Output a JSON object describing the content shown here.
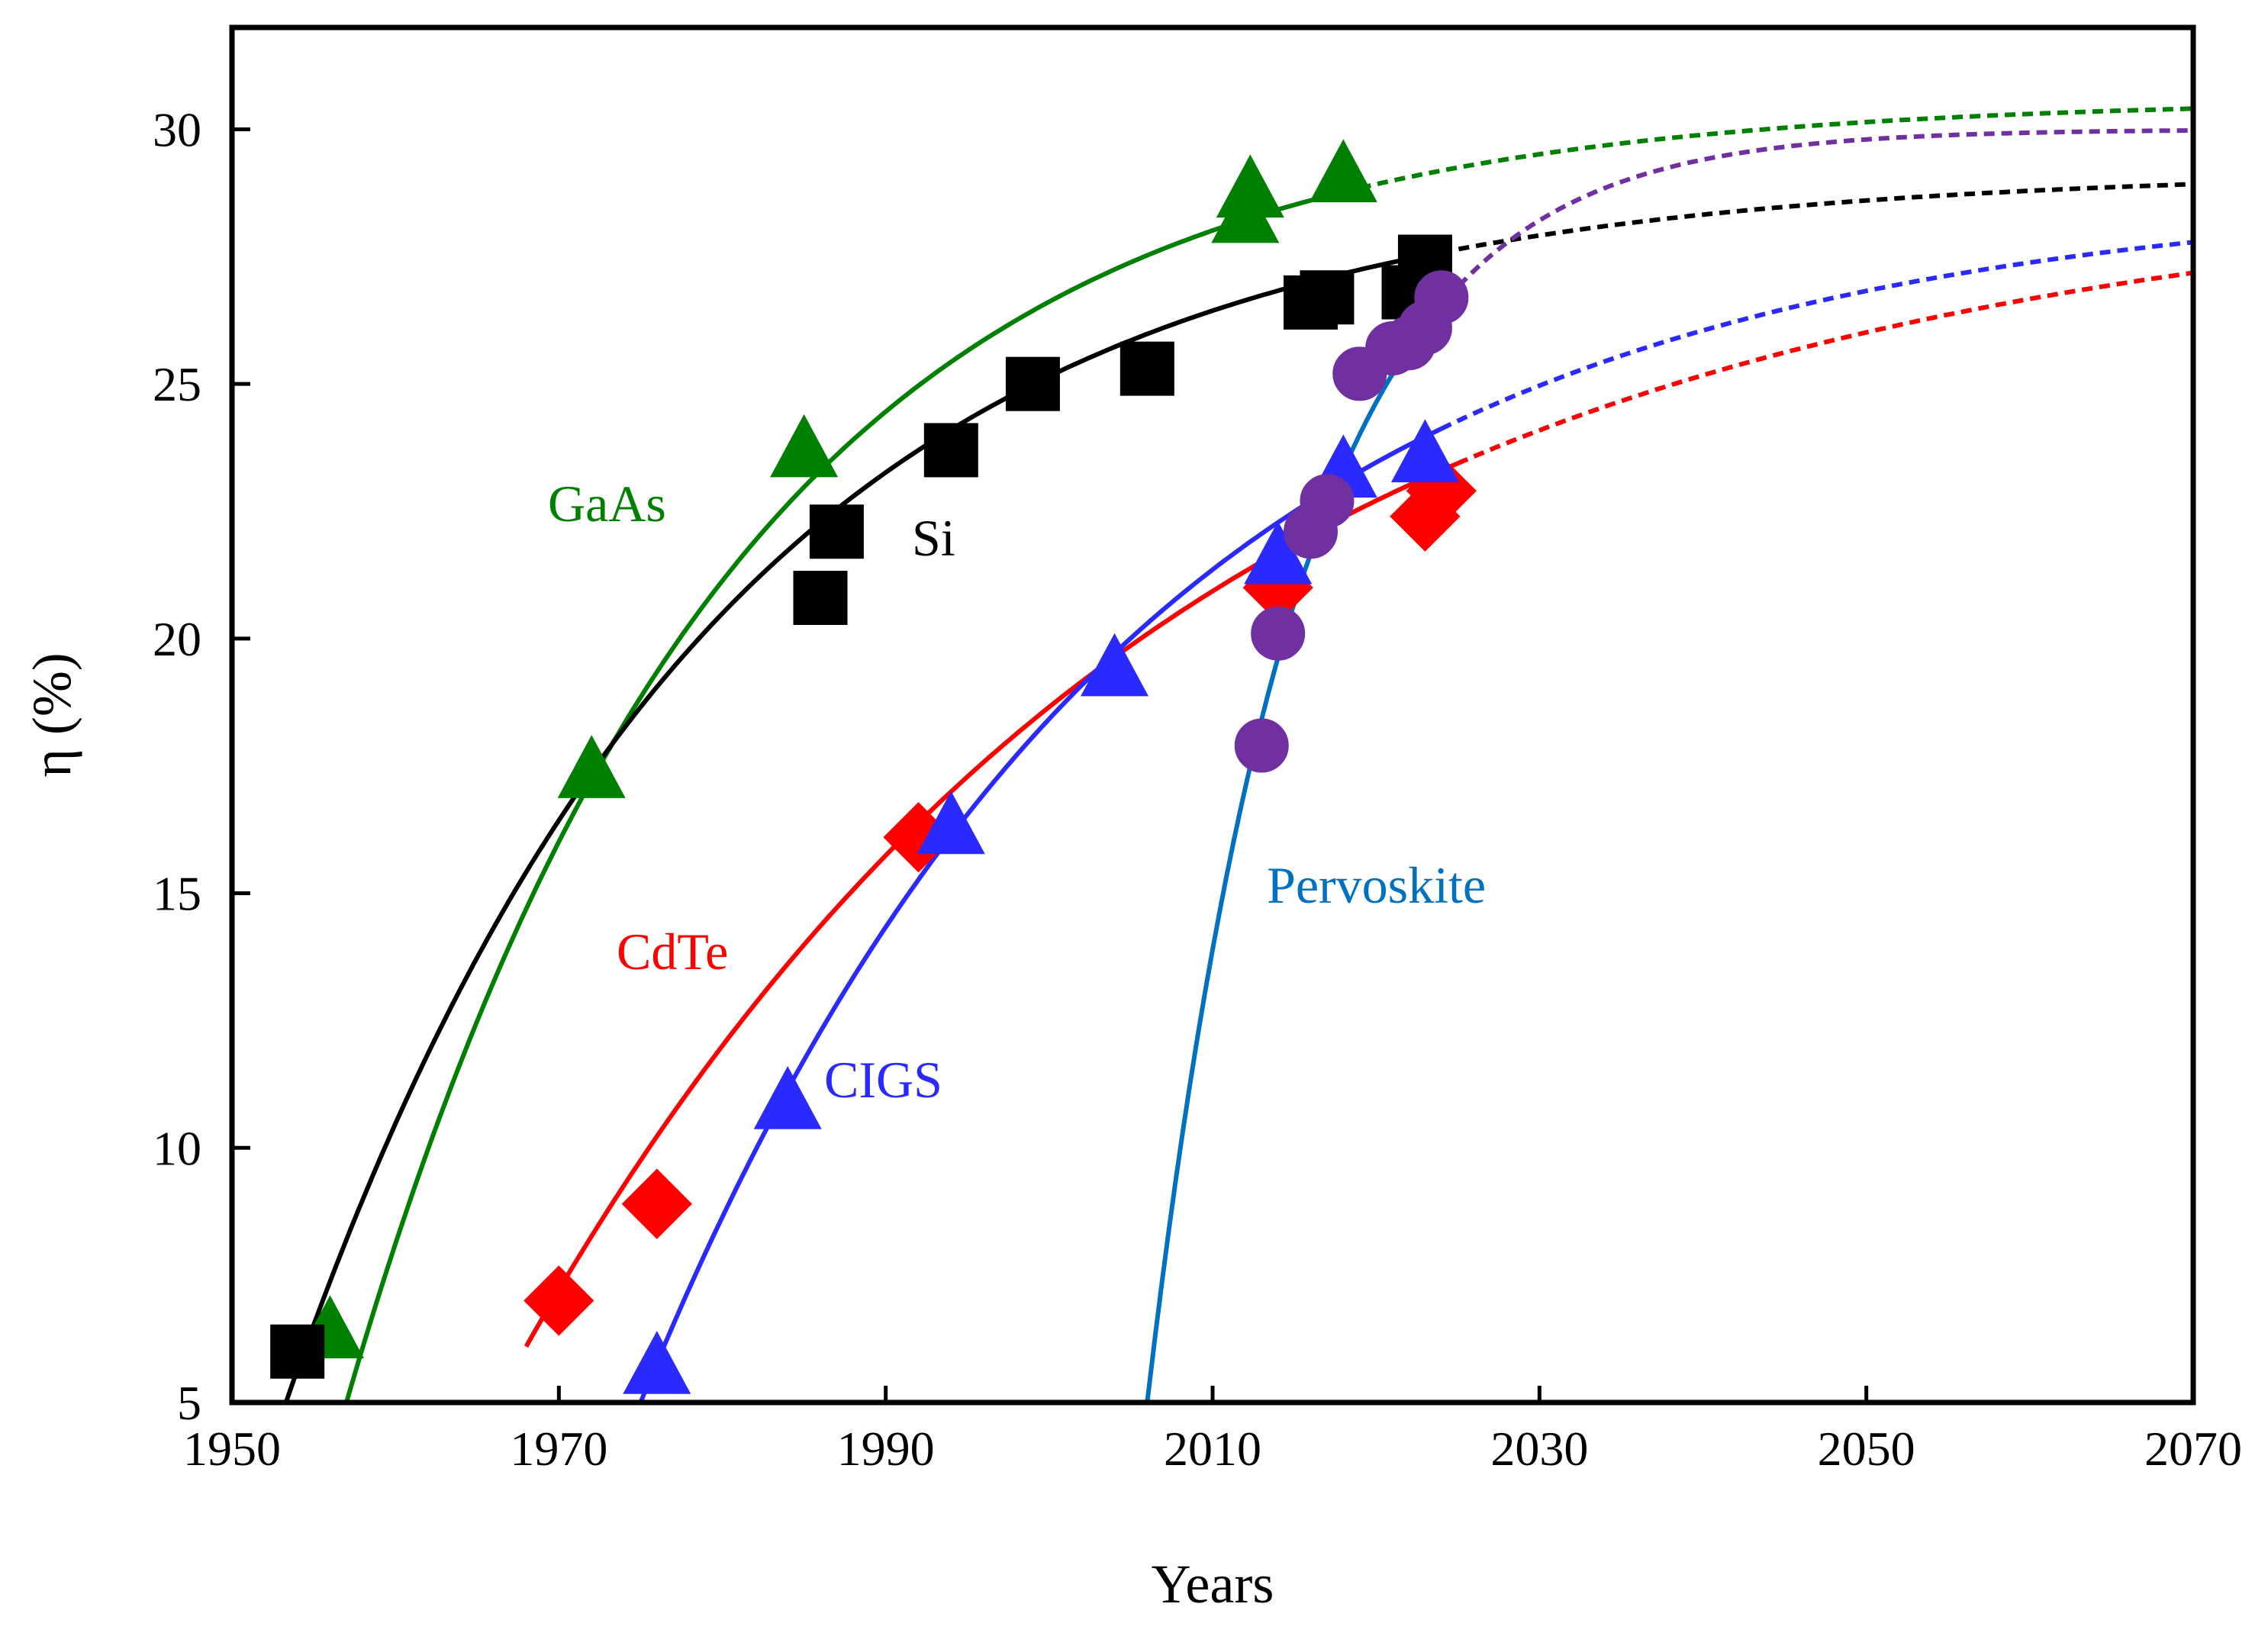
{
  "chart_data": {
    "type": "scatter",
    "title": "",
    "xlabel": "Years",
    "ylabel": "η (%)",
    "xlim": [
      1950,
      2070
    ],
    "ylim": [
      5,
      32
    ],
    "xticks": [
      1950,
      1970,
      1990,
      2010,
      2030,
      2050,
      2070
    ],
    "yticks": [
      5,
      10,
      15,
      20,
      25,
      30
    ],
    "grid": false,
    "legend": "none (inline series labels)",
    "series": [
      {
        "name": "GaAs",
        "label": "GaAs",
        "color": "#008000",
        "marker": "triangle",
        "points": [
          [
            1956,
            6.4
          ],
          [
            1972,
            17.4
          ],
          [
            1985,
            23.7
          ],
          [
            2012,
            28.3
          ],
          [
            2012.3,
            28.8
          ],
          [
            2018,
            29.1
          ]
        ],
        "fit": {
          "A": 30.6,
          "B": 25.6,
          "tau": 23.12,
          "x0": 1957,
          "x_solid_end": 2018,
          "x_end": 2070
        }
      },
      {
        "name": "Si",
        "label": "Si",
        "color": "#000000",
        "marker": "square",
        "points": [
          [
            1954,
            6.0
          ],
          [
            1986,
            20.8
          ],
          [
            1987,
            22.1
          ],
          [
            1994,
            23.7
          ],
          [
            1999,
            25.0
          ],
          [
            2006,
            25.3
          ],
          [
            2016,
            26.6
          ],
          [
            2017,
            26.7
          ],
          [
            2022,
            26.8
          ],
          [
            2023,
            27.4
          ]
        ],
        "fit": {
          "A": 29.2,
          "B": 24.2,
          "tau": 26.12,
          "x0": 1953.3,
          "x_solid_end": 2024,
          "x_end": 2070
        }
      },
      {
        "name": "CdTe",
        "label": "CdTe",
        "color": "#ff0000",
        "marker": "diamond",
        "points": [
          [
            1970,
            7.0
          ],
          [
            1976,
            8.9
          ],
          [
            1992,
            16.1
          ],
          [
            2014,
            21.0
          ],
          [
            2023,
            22.4
          ],
          [
            2024,
            22.9
          ]
        ],
        "fit": {
          "A": 29.0,
          "B": 22.9,
          "tau": 40.26,
          "x0": 1968,
          "x_solid_end": 2025,
          "x_end": 2070
        }
      },
      {
        "name": "CIGS",
        "label": "CIGS",
        "color": "#2a2aff",
        "marker": "triangle",
        "points": [
          [
            1976,
            5.7
          ],
          [
            1984,
            10.9
          ],
          [
            1994,
            16.3
          ],
          [
            2004,
            19.4
          ],
          [
            2014,
            21.6
          ],
          [
            2018,
            23.3
          ],
          [
            2023,
            23.6
          ]
        ],
        "fit": {
          "A": 28.8,
          "B": 23.8,
          "tau": 30.12,
          "x0": 1975,
          "x_solid_end": 2024,
          "x_end": 2070
        }
      },
      {
        "name": "Pervoskite",
        "label": "Pervoskite",
        "color": "#0070c0",
        "marker": "circle",
        "marker_color": "#7030a0",
        "points": [
          [
            2013,
            17.9
          ],
          [
            2014,
            20.1
          ],
          [
            2016,
            22.1
          ],
          [
            2017,
            22.7
          ],
          [
            2019,
            25.2
          ],
          [
            2021,
            25.7
          ],
          [
            2022,
            25.8
          ],
          [
            2023,
            26.1
          ],
          [
            2024,
            26.7
          ]
        ],
        "fit": {
          "A": 30.0,
          "B": 25.0,
          "tau": 9.1,
          "x0": 2006,
          "x_solid_end": 2023,
          "x_end": 2070
        },
        "projection_color": "#7030a0"
      }
    ]
  }
}
